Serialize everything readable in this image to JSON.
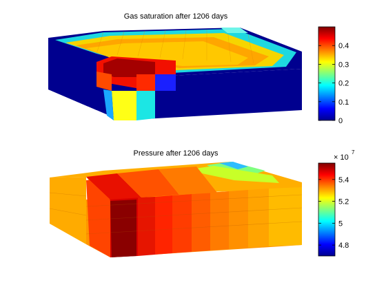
{
  "chart_data": [
    {
      "type": "heatmap",
      "title": "Gas saturation after 1206 days",
      "colorbar": {
        "range": [
          0,
          0.5
        ],
        "ticks": [
          0,
          0.1,
          0.2,
          0.3,
          0.4
        ],
        "tick_labels": [
          "0",
          "0.1",
          "0.2",
          "0.3",
          "0.4"
        ],
        "exponent_label": ""
      }
    },
    {
      "type": "heatmap",
      "title": "Pressure after 1206 days",
      "colorbar": {
        "range": [
          4.7,
          5.55
        ],
        "ticks": [
          4.8,
          5.0,
          5.2,
          5.4
        ],
        "tick_labels": [
          "4.8",
          "5",
          "5.2",
          "5.4"
        ],
        "exponent_label": "× 10",
        "exponent_power": "7"
      }
    }
  ],
  "colormap": "jet"
}
